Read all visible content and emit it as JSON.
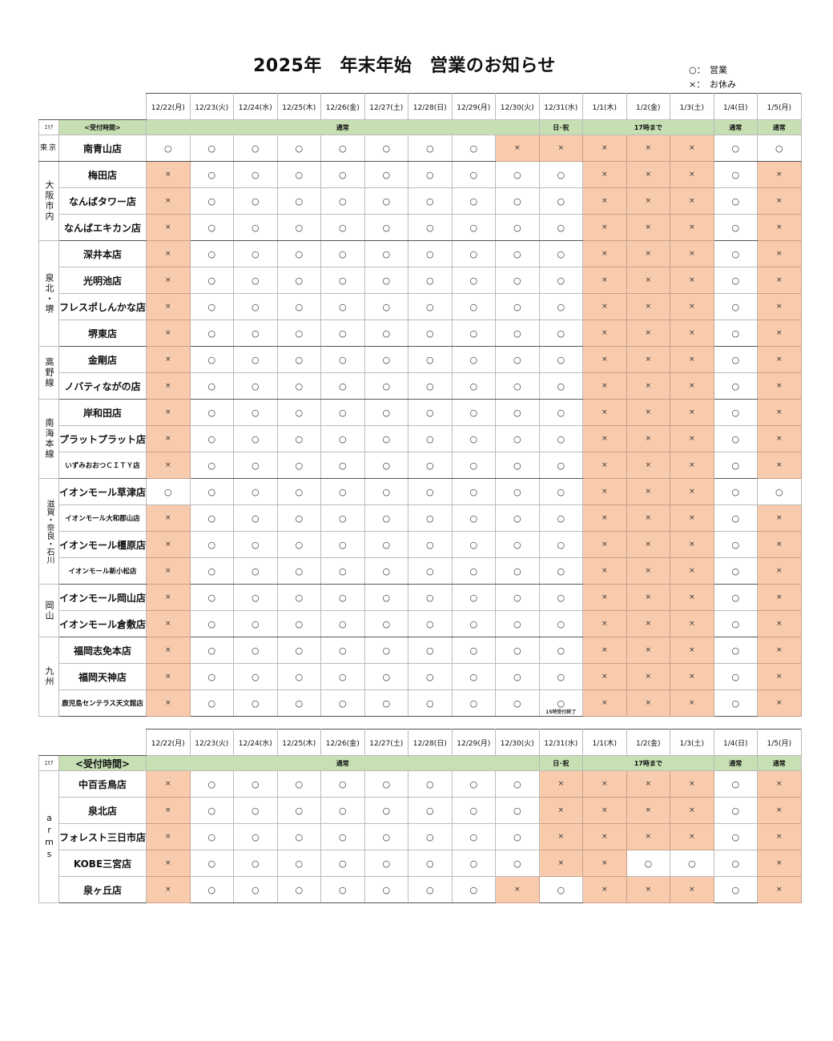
{
  "title": "2025年　年末年始　営業のお知らせ",
  "legend": [
    {
      "symbol": "○：",
      "label": "営業"
    },
    {
      "symbol": "×：",
      "label": "お休み"
    }
  ],
  "colors": {
    "band_green": "#c6e0b4",
    "closed_fill": "#f8cbad"
  },
  "dates": [
    "12/22(月)",
    "12/23(火)",
    "12/24(水)",
    "12/25(木)",
    "12/26(金)",
    "12/27(土)",
    "12/28(日)",
    "12/29(月)",
    "12/30(火)",
    "12/31(水)",
    "1/1(木)",
    "1/2(金)",
    "1/3(土)",
    "1/4(日)",
    "1/5(月)"
  ],
  "area_header": "ｴﾘｱ",
  "reception_header": "<受付時間>",
  "reception_bands": [
    {
      "label": "通常",
      "span": 9
    },
    {
      "label": "日･祝",
      "span": 1
    },
    {
      "label": "17時まで",
      "span": 3
    },
    {
      "label": "通常",
      "span": 1
    },
    {
      "label": "通常",
      "span": 1
    }
  ],
  "tables": [
    {
      "groups": [
        {
          "area": "東京",
          "stores": [
            {
              "name": "南青山店",
              "status": [
                "○",
                "○",
                "○",
                "○",
                "○",
                "○",
                "○",
                "○",
                "×",
                "×",
                "×",
                "×",
                "×",
                "○",
                "○"
              ]
            }
          ]
        },
        {
          "area": "大阪市内",
          "stores": [
            {
              "name": "梅田店",
              "status": [
                "×",
                "○",
                "○",
                "○",
                "○",
                "○",
                "○",
                "○",
                "○",
                "○",
                "×",
                "×",
                "×",
                "○",
                "×"
              ]
            },
            {
              "name": "なんばタワー店",
              "status": [
                "×",
                "○",
                "○",
                "○",
                "○",
                "○",
                "○",
                "○",
                "○",
                "○",
                "×",
                "×",
                "×",
                "○",
                "×"
              ]
            },
            {
              "name": "なんばエキカン店",
              "status": [
                "×",
                "○",
                "○",
                "○",
                "○",
                "○",
                "○",
                "○",
                "○",
                "○",
                "×",
                "×",
                "×",
                "○",
                "×"
              ]
            }
          ]
        },
        {
          "area": "泉北・堺",
          "stores": [
            {
              "name": "深井本店",
              "status": [
                "×",
                "○",
                "○",
                "○",
                "○",
                "○",
                "○",
                "○",
                "○",
                "○",
                "×",
                "×",
                "×",
                "○",
                "×"
              ]
            },
            {
              "name": "光明池店",
              "status": [
                "×",
                "○",
                "○",
                "○",
                "○",
                "○",
                "○",
                "○",
                "○",
                "○",
                "×",
                "×",
                "×",
                "○",
                "×"
              ]
            },
            {
              "name": "フレスポしんかな店",
              "status": [
                "×",
                "○",
                "○",
                "○",
                "○",
                "○",
                "○",
                "○",
                "○",
                "○",
                "×",
                "×",
                "×",
                "○",
                "×"
              ]
            },
            {
              "name": "堺東店",
              "status": [
                "×",
                "○",
                "○",
                "○",
                "○",
                "○",
                "○",
                "○",
                "○",
                "○",
                "×",
                "×",
                "×",
                "○",
                "×"
              ]
            }
          ]
        },
        {
          "area": "高野線",
          "stores": [
            {
              "name": "金剛店",
              "status": [
                "×",
                "○",
                "○",
                "○",
                "○",
                "○",
                "○",
                "○",
                "○",
                "○",
                "×",
                "×",
                "×",
                "○",
                "×"
              ]
            },
            {
              "name": "ノバティながの店",
              "status": [
                "×",
                "○",
                "○",
                "○",
                "○",
                "○",
                "○",
                "○",
                "○",
                "○",
                "×",
                "×",
                "×",
                "○",
                "×"
              ]
            }
          ]
        },
        {
          "area": "南海本線",
          "stores": [
            {
              "name": "岸和田店",
              "status": [
                "×",
                "○",
                "○",
                "○",
                "○",
                "○",
                "○",
                "○",
                "○",
                "○",
                "×",
                "×",
                "×",
                "○",
                "×"
              ]
            },
            {
              "name": "プラットプラット店",
              "status": [
                "×",
                "○",
                "○",
                "○",
                "○",
                "○",
                "○",
                "○",
                "○",
                "○",
                "×",
                "×",
                "×",
                "○",
                "×"
              ]
            },
            {
              "name": "いずみおおつＣＩＴＹ店",
              "small": true,
              "status": [
                "×",
                "○",
                "○",
                "○",
                "○",
                "○",
                "○",
                "○",
                "○",
                "○",
                "×",
                "×",
                "×",
                "○",
                "×"
              ]
            }
          ]
        },
        {
          "area": "滋賀・奈良・石川",
          "small": true,
          "stores": [
            {
              "name": "イオンモール草津店",
              "status": [
                "○",
                "○",
                "○",
                "○",
                "○",
                "○",
                "○",
                "○",
                "○",
                "○",
                "×",
                "×",
                "×",
                "○",
                "○"
              ]
            },
            {
              "name": "イオンモール大和郡山店",
              "small": true,
              "status": [
                "×",
                "○",
                "○",
                "○",
                "○",
                "○",
                "○",
                "○",
                "○",
                "○",
                "×",
                "×",
                "×",
                "○",
                "×"
              ]
            },
            {
              "name": "イオンモール橿原店",
              "status": [
                "×",
                "○",
                "○",
                "○",
                "○",
                "○",
                "○",
                "○",
                "○",
                "○",
                "×",
                "×",
                "×",
                "○",
                "×"
              ]
            },
            {
              "name": "イオンモール新小松店",
              "small": true,
              "status": [
                "×",
                "○",
                "○",
                "○",
                "○",
                "○",
                "○",
                "○",
                "○",
                "○",
                "×",
                "×",
                "×",
                "○",
                "×"
              ]
            }
          ]
        },
        {
          "area": "岡山",
          "stores": [
            {
              "name": "イオンモール岡山店",
              "status": [
                "×",
                "○",
                "○",
                "○",
                "○",
                "○",
                "○",
                "○",
                "○",
                "○",
                "×",
                "×",
                "×",
                "○",
                "×"
              ]
            },
            {
              "name": "イオンモール倉敷店",
              "status": [
                "×",
                "○",
                "○",
                "○",
                "○",
                "○",
                "○",
                "○",
                "○",
                "○",
                "×",
                "×",
                "×",
                "○",
                "×"
              ]
            }
          ]
        },
        {
          "area": "九州",
          "stores": [
            {
              "name": "福岡志免本店",
              "status": [
                "×",
                "○",
                "○",
                "○",
                "○",
                "○",
                "○",
                "○",
                "○",
                "○",
                "×",
                "×",
                "×",
                "○",
                "×"
              ]
            },
            {
              "name": "福岡天神店",
              "status": [
                "×",
                "○",
                "○",
                "○",
                "○",
                "○",
                "○",
                "○",
                "○",
                "○",
                "×",
                "×",
                "×",
                "○",
                "×"
              ]
            },
            {
              "name": "鹿児島センテラス天文館店",
              "small": true,
              "status": [
                "×",
                "○",
                "○",
                "○",
                "○",
                "○",
                "○",
                "○",
                "○",
                "○",
                "×",
                "×",
                "×",
                "○",
                "×"
              ],
              "notes": {
                "9": "15時受付終了"
              }
            }
          ]
        }
      ]
    },
    {
      "groups": [
        {
          "area": "arms",
          "stores": [
            {
              "name": "中百舌鳥店",
              "status": [
                "×",
                "○",
                "○",
                "○",
                "○",
                "○",
                "○",
                "○",
                "○",
                "×",
                "×",
                "×",
                "×",
                "○",
                "×"
              ]
            },
            {
              "name": "泉北店",
              "status": [
                "×",
                "○",
                "○",
                "○",
                "○",
                "○",
                "○",
                "○",
                "○",
                "×",
                "×",
                "×",
                "×",
                "○",
                "×"
              ]
            },
            {
              "name": "フォレスト三日市店",
              "status": [
                "×",
                "○",
                "○",
                "○",
                "○",
                "○",
                "○",
                "○",
                "○",
                "×",
                "×",
                "×",
                "×",
                "○",
                "×"
              ]
            },
            {
              "name": "KOBE三宮店",
              "status": [
                "×",
                "○",
                "○",
                "○",
                "○",
                "○",
                "○",
                "○",
                "○",
                "×",
                "×",
                "○",
                "○",
                "○",
                "×"
              ]
            },
            {
              "name": "泉ヶ丘店",
              "status": [
                "×",
                "○",
                "○",
                "○",
                "○",
                "○",
                "○",
                "○",
                "×",
                "○",
                "×",
                "×",
                "×",
                "○",
                "×"
              ]
            }
          ]
        }
      ]
    }
  ]
}
